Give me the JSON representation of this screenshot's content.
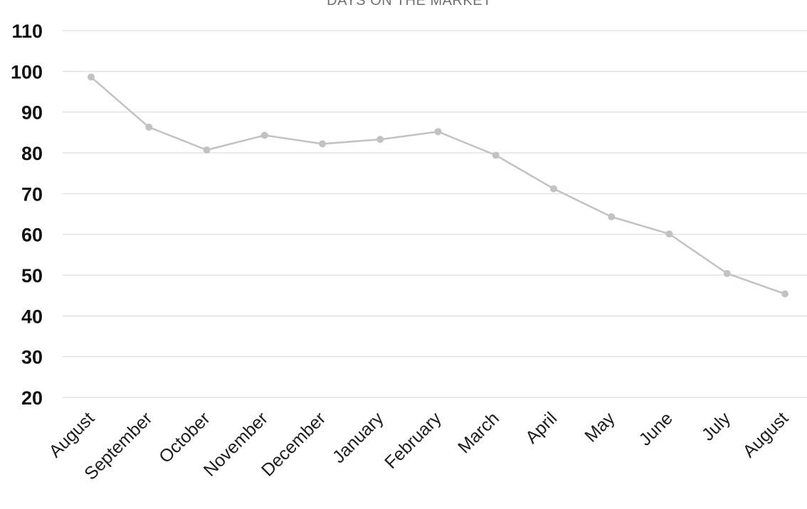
{
  "chart_data": {
    "type": "line",
    "title": "DAYS ON THE MARKET",
    "xlabel": "",
    "ylabel": "",
    "categories": [
      "August",
      "September",
      "October",
      "November",
      "December",
      "January",
      "February",
      "March",
      "April",
      "May",
      "June",
      "July",
      "August"
    ],
    "series": [
      {
        "values": [
          98.6,
          86.3,
          80.7,
          84.3,
          82.2,
          83.3,
          85.2,
          79.4,
          71.2,
          64.3,
          60.1,
          50.4,
          45.4
        ]
      }
    ],
    "ylim": [
      20,
      110
    ],
    "yticks": [
      20,
      30,
      40,
      50,
      60,
      70,
      80,
      90,
      100,
      110
    ],
    "grid": true,
    "legend": "none",
    "colors": {
      "line": "#c2c2c2",
      "marker": "#c2c2c2",
      "grid": "#dddddd"
    }
  }
}
